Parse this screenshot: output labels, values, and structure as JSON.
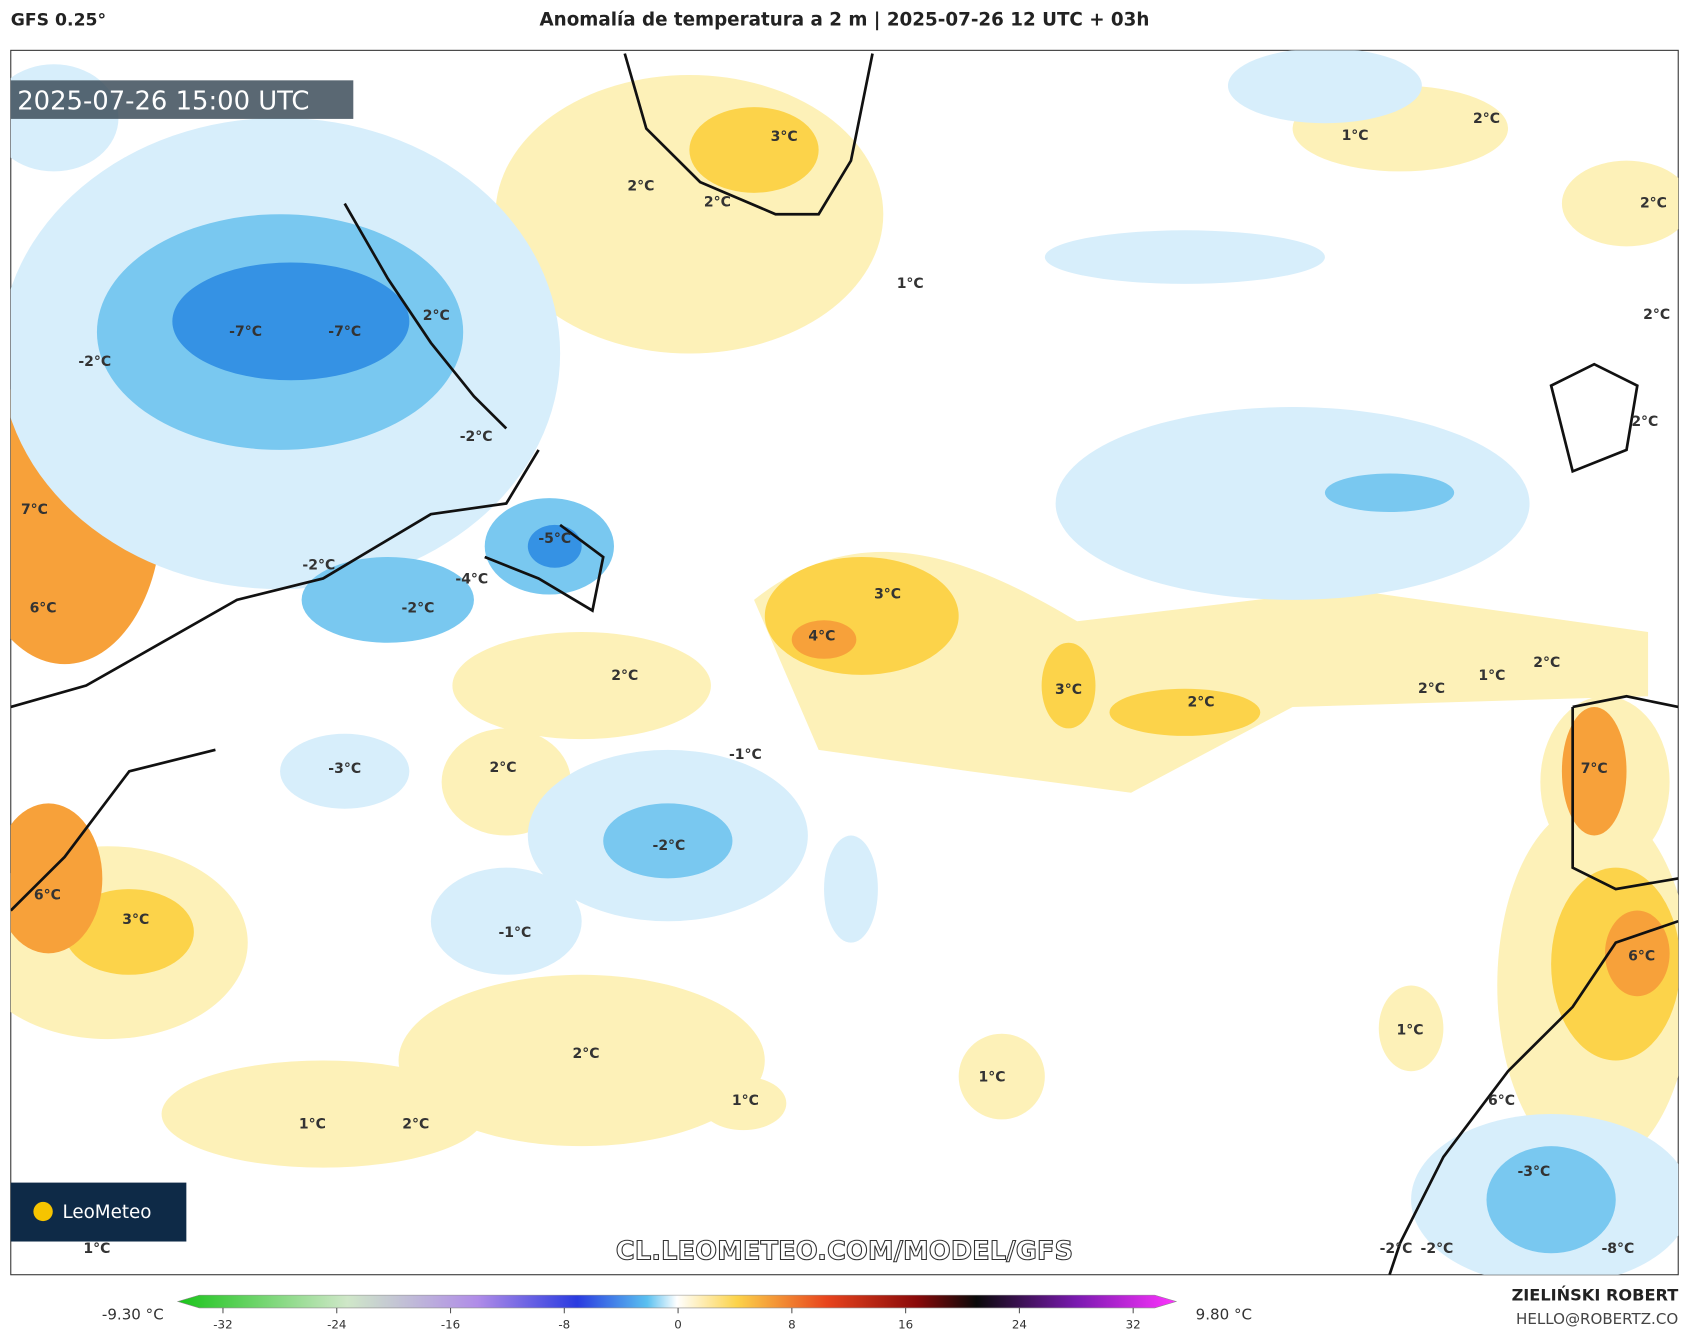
{
  "header": {
    "model": "GFS 0.25°",
    "title": "Anomalía de temperatura a 2 m | 2025-07-26 12 UTC + 03h"
  },
  "map": {
    "valid_time": "2025-07-26 15:00 UTC",
    "contour_labels": [
      "-7°C",
      "-7°C",
      "-2°C",
      "2°C",
      "-2°C",
      "7°C",
      "6°C",
      "-2°C",
      "-4°C",
      "-2°C",
      "-5°C",
      "3°C",
      "2°C",
      "2°C",
      "1°C",
      "1°C",
      "2°C",
      "2°C",
      "2°C",
      "2°C",
      "3°C",
      "4°C",
      "2°C",
      "3°C",
      "2°C",
      "2°C",
      "1°C",
      "2°C",
      "-3°C",
      "2°C",
      "-1°C",
      "-2°C",
      "6°C",
      "3°C",
      "-1°C",
      "7°C",
      "6°C",
      "1°C",
      "2°C",
      "1°C",
      "1°C",
      "1°C",
      "2°C",
      "6°C",
      "-3°C",
      "-2°C",
      "-2°C",
      "-8°C",
      "1°C"
    ],
    "logo": "LeoMeteo",
    "watermark": "CL.LEOMETEO.COM/MODEL/GFS"
  },
  "colorbar": {
    "min_label": "-9.30 °C",
    "max_label": "9.80 °C",
    "ticks": [
      -32,
      -24,
      -16,
      -8,
      0,
      8,
      16,
      24,
      32
    ]
  },
  "footer": {
    "author": "ZIELIŃSKI ROBERT",
    "email": "HELLO@ROBERTZ.CO"
  }
}
